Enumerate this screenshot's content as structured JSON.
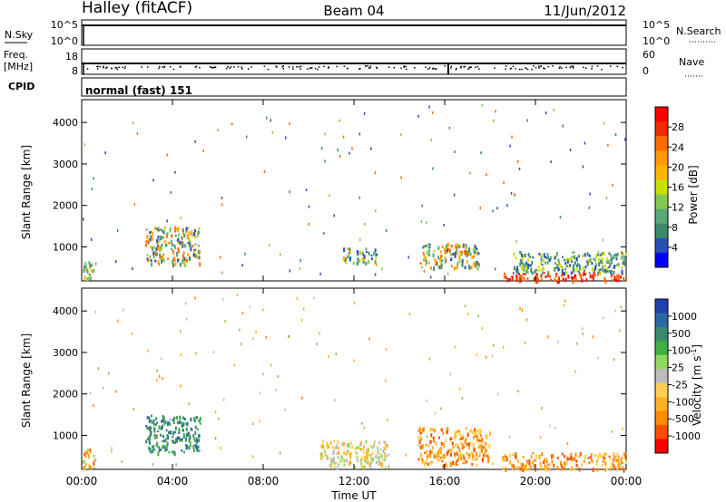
{
  "header": {
    "station": "Halley (fitACF)",
    "beam": "Beam 04",
    "date": "11/Jun/2012"
  },
  "top_panels": {
    "nsky_label": "N.Sky",
    "nsky_ticks": [
      "10^5",
      "10^0"
    ],
    "nsearch_label": "N.Search",
    "nsearch_ticks": [
      "10^5",
      "10^0"
    ],
    "freq_label_1": "Freq.",
    "freq_label_2": "[MHz]",
    "freq_ticks": [
      "18",
      "8"
    ],
    "nave_label": "Nave",
    "nave_ticks": [
      "60",
      "0"
    ],
    "cpid_label": "CPID",
    "cpid_text": "normal (fast) 151"
  },
  "colorbars": {
    "power": {
      "label": "Power [dB]",
      "ticks": [
        "28",
        "24",
        "20",
        "16",
        "12",
        "8",
        "4"
      ],
      "colors": [
        "#ff0000",
        "#f22a00",
        "#ff6a00",
        "#ff9a00",
        "#ffb400",
        "#cce000",
        "#84c850",
        "#5aa878",
        "#3c8a6a",
        "#2850b4",
        "#0000ff"
      ]
    },
    "velocity": {
      "label": "Velocity [m s",
      "label_sup": "-1",
      "label_end": "]",
      "ticks": [
        "1000",
        "500",
        "100",
        "25",
        "-25",
        "-100",
        "-500",
        "-1000"
      ],
      "colors": [
        "#2040b0",
        "#2a6aa0",
        "#3a8a70",
        "#40b040",
        "#90d860",
        "#bcbcbc",
        "#ffd050",
        "#ffb020",
        "#ff8c00",
        "#ff5000",
        "#ff0000"
      ]
    }
  },
  "chart_data": [
    {
      "type": "heatmap",
      "title": "Power",
      "xlabel": "Time UT",
      "ylabel": "Slant Range [km]",
      "xlim": [
        0,
        24
      ],
      "ylim": [
        180,
        4550
      ],
      "x_ticks": [
        "00:00",
        "04:00",
        "08:00",
        "12:00",
        "16:00",
        "20:00",
        "00:00"
      ],
      "y_ticks": [
        1000,
        2000,
        3000,
        4000
      ],
      "blobs": [
        {
          "x0": 0.0,
          "x1": 0.5,
          "r0": 200,
          "r1": 700,
          "level": "mid"
        },
        {
          "x0": 2.8,
          "x1": 5.2,
          "r0": 600,
          "r1": 1500,
          "level": "high"
        },
        {
          "x0": 11.5,
          "x1": 13.0,
          "r0": 600,
          "r1": 1000,
          "level": "mid"
        },
        {
          "x0": 14.8,
          "x1": 17.5,
          "r0": 500,
          "r1": 1100,
          "level": "high"
        },
        {
          "x0": 18.5,
          "x1": 24.0,
          "r0": 200,
          "r1": 400,
          "level": "max"
        },
        {
          "x0": 19.0,
          "x1": 24.0,
          "r0": 400,
          "r1": 900,
          "level": "low"
        }
      ]
    },
    {
      "type": "heatmap",
      "title": "Velocity",
      "xlabel": "Time UT",
      "ylabel": "Slant Range [km]",
      "xlim": [
        0,
        24
      ],
      "ylim": [
        180,
        4550
      ],
      "x_ticks": [
        "00:00",
        "04:00",
        "08:00",
        "12:00",
        "16:00",
        "20:00",
        "00:00"
      ],
      "y_ticks": [
        1000,
        2000,
        3000,
        4000
      ],
      "blobs": [
        {
          "x0": 0.0,
          "x1": 0.6,
          "r0": 200,
          "r1": 700,
          "level": "neg_high"
        },
        {
          "x0": 2.8,
          "x1": 5.2,
          "r0": 600,
          "r1": 1500,
          "level": "pos_mid"
        },
        {
          "x0": 10.5,
          "x1": 13.5,
          "r0": 250,
          "r1": 900,
          "level": "neg_low"
        },
        {
          "x0": 14.8,
          "x1": 18.0,
          "r0": 300,
          "r1": 1200,
          "level": "neg_mid"
        },
        {
          "x0": 18.5,
          "x1": 24.0,
          "r0": 200,
          "r1": 600,
          "level": "neg_mid"
        }
      ]
    }
  ]
}
